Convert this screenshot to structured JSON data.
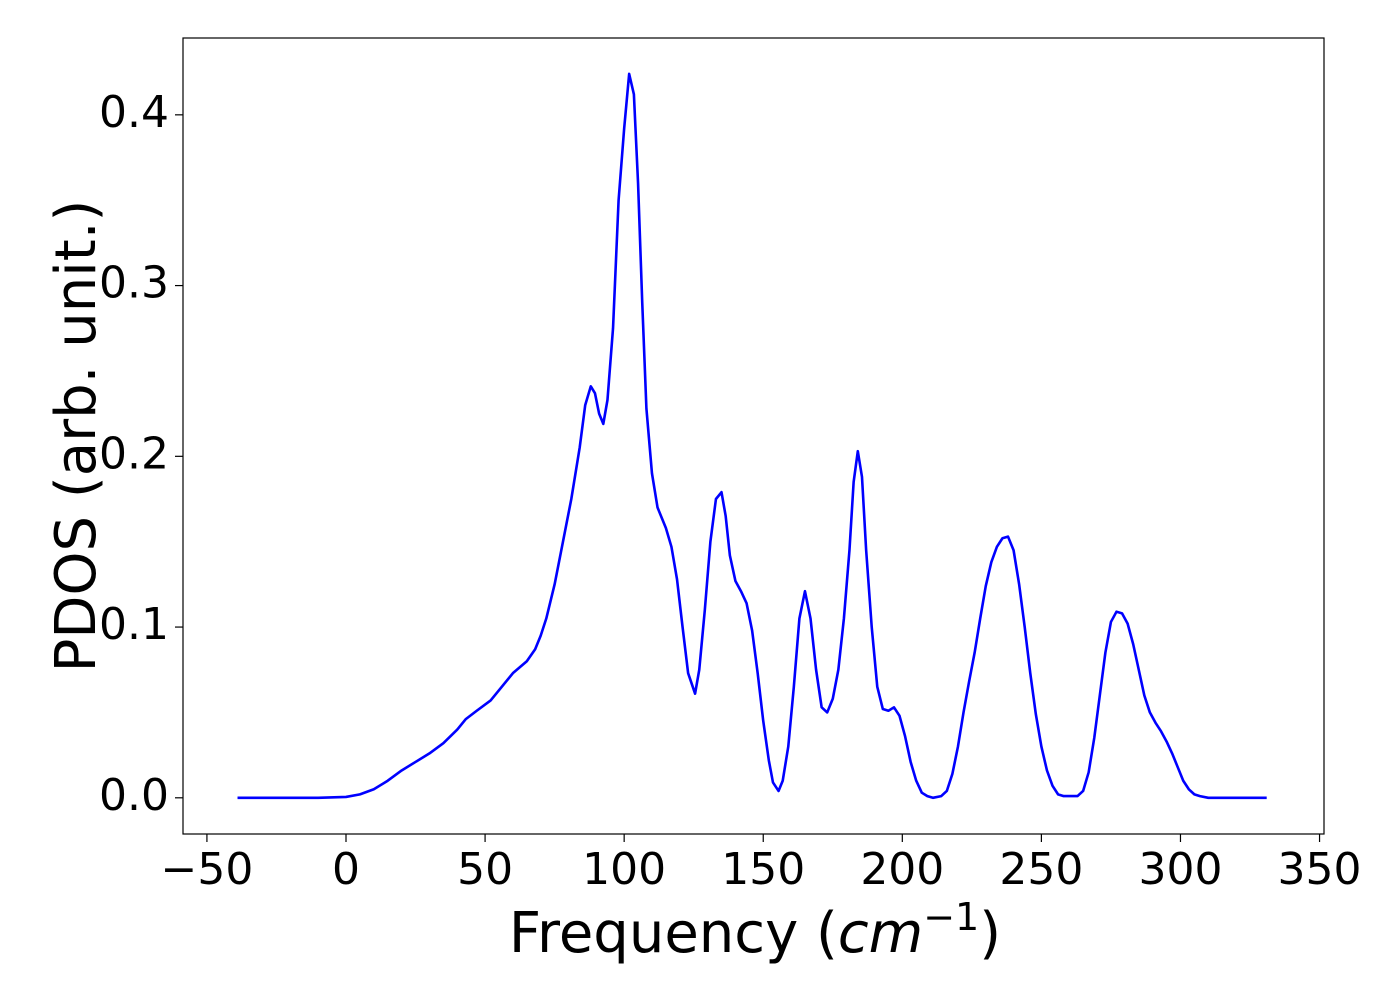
{
  "chart_data": {
    "type": "line",
    "y_label": "PDOS (arb. unit.)",
    "x_label": {
      "text": "Frequency (",
      "math": "cm",
      "superscript": "−1",
      "end": ")"
    },
    "xlim": [
      -58.6,
      351.6
    ],
    "ylim": [
      -0.0212,
      0.445
    ],
    "xticks": [
      {
        "value": -50,
        "label": "−50"
      },
      0,
      50,
      100,
      150,
      200,
      250,
      300,
      350
    ],
    "yticks": [
      {
        "value": 0,
        "label": "0.0"
      },
      0.1,
      0.2,
      0.3,
      0.4
    ],
    "grid": false,
    "series": [
      {
        "name": "PDOS",
        "color": "#0000ff",
        "x": [
          -39,
          -10,
          0,
          5,
          10,
          15,
          20,
          25,
          30,
          35,
          40,
          43,
          47,
          52,
          56,
          60,
          65,
          68,
          70,
          72,
          75,
          78,
          81,
          84,
          86,
          88,
          89.5,
          91,
          92.5,
          94,
          96,
          98,
          100,
          101.8,
          103.5,
          105,
          106.5,
          108,
          110,
          112,
          115,
          117,
          119,
          121,
          123,
          125.5,
          127,
          129,
          131,
          133,
          135,
          136.5,
          138,
          140,
          142,
          144,
          146,
          148,
          150,
          152,
          153.5,
          155.5,
          157,
          159,
          161,
          163,
          165,
          167,
          169,
          171,
          173,
          175,
          177,
          179,
          181,
          182.5,
          184,
          185.5,
          187,
          189,
          191,
          193,
          195,
          197,
          199,
          201,
          203,
          205,
          207,
          209,
          211,
          214,
          216,
          218,
          220,
          222,
          224,
          226,
          228,
          230,
          232,
          234,
          236,
          238,
          240,
          242,
          244,
          246,
          248,
          250,
          252,
          254,
          256,
          258,
          263,
          265,
          267,
          269,
          271,
          273,
          275,
          277,
          279,
          281,
          283,
          285,
          287,
          289,
          291,
          293,
          295,
          297,
          299,
          301,
          303,
          305,
          307,
          310,
          331
        ],
        "values": [
          0,
          0,
          0.0005,
          0.002,
          0.005,
          0.01,
          0.016,
          0.021,
          0.026,
          0.032,
          0.04,
          0.046,
          0.051,
          0.057,
          0.065,
          0.073,
          0.08,
          0.087,
          0.095,
          0.105,
          0.125,
          0.15,
          0.175,
          0.205,
          0.23,
          0.241,
          0.237,
          0.225,
          0.219,
          0.233,
          0.275,
          0.35,
          0.392,
          0.424,
          0.412,
          0.36,
          0.29,
          0.228,
          0.19,
          0.17,
          0.158,
          0.147,
          0.128,
          0.1,
          0.073,
          0.061,
          0.075,
          0.11,
          0.15,
          0.175,
          0.179,
          0.165,
          0.142,
          0.127,
          0.121,
          0.114,
          0.098,
          0.073,
          0.045,
          0.022,
          0.009,
          0.004,
          0.01,
          0.03,
          0.065,
          0.105,
          0.121,
          0.105,
          0.075,
          0.053,
          0.05,
          0.058,
          0.075,
          0.105,
          0.145,
          0.185,
          0.203,
          0.188,
          0.145,
          0.1,
          0.065,
          0.052,
          0.051,
          0.053,
          0.048,
          0.036,
          0.021,
          0.01,
          0.003,
          0.001,
          0,
          0.001,
          0.004,
          0.014,
          0.03,
          0.05,
          0.068,
          0.085,
          0.105,
          0.124,
          0.138,
          0.147,
          0.152,
          0.153,
          0.145,
          0.125,
          0.1,
          0.073,
          0.049,
          0.03,
          0.016,
          0.007,
          0.002,
          0.001,
          0.001,
          0.004,
          0.015,
          0.035,
          0.06,
          0.085,
          0.103,
          0.109,
          0.108,
          0.102,
          0.09,
          0.075,
          0.06,
          0.05,
          0.044,
          0.039,
          0.033,
          0.026,
          0.018,
          0.01,
          0.005,
          0.002,
          0.001,
          0,
          0
        ]
      }
    ]
  }
}
